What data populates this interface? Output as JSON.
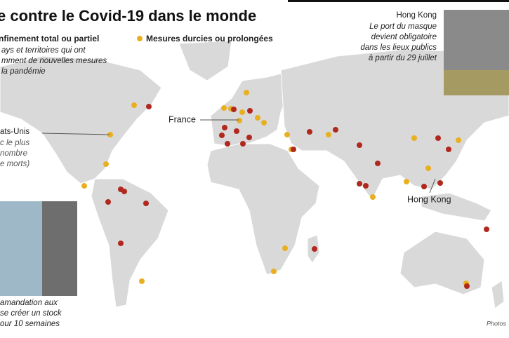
{
  "header": {
    "title": "e contre le Covid-19 dans le monde"
  },
  "legend": {
    "items": [
      "nfinement total ou partiel",
      "Mesures durcies ou prolongées"
    ],
    "note": [
      "ays et territoires qui ont",
      "mment de nouvelles mesures",
      "la pandémie"
    ]
  },
  "callouts": {
    "hong_kong": {
      "place": "Hong Kong",
      "text": [
        "Le port du masque",
        "devient obligatoire",
        "dans les lieux publics",
        "à partir du 29 juillet"
      ]
    },
    "usa": {
      "place": "ats-Unis",
      "text": [
        "c le plus",
        "nombre",
        "e morts)"
      ]
    },
    "stock": {
      "text": [
        "amandation aux",
        "se créer un stock",
        "our 10 semaines"
      ]
    }
  },
  "map_labels": [
    "France",
    "Hong Kong"
  ],
  "credit": "Photos"
}
